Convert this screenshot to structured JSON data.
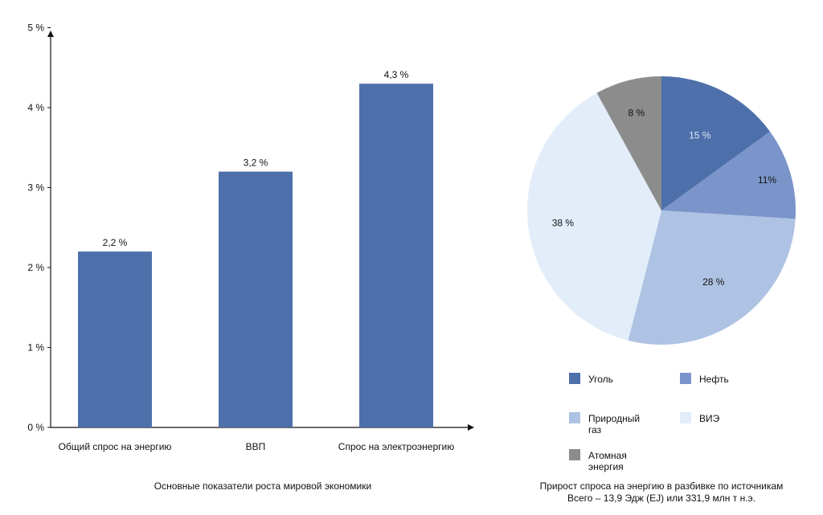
{
  "chart_data": [
    {
      "type": "bar",
      "caption": "Основные показатели роста мировой экономики",
      "categories": [
        "Общий спрос на энергию",
        "ВВП",
        "Спрос на электроэнергию"
      ],
      "values": [
        2.2,
        3.2,
        4.3
      ],
      "value_labels": [
        "2,2 %",
        "3,2 %",
        "4,3 %"
      ],
      "y_ticks": [
        {
          "value": 0,
          "label": "0 %"
        },
        {
          "value": 1,
          "label": "1 %"
        },
        {
          "value": 2,
          "label": "2 %"
        },
        {
          "value": 3,
          "label": "3 %"
        },
        {
          "value": 4,
          "label": "4 %"
        },
        {
          "value": 5,
          "label": "5 %"
        }
      ],
      "ylim": [
        0,
        5
      ],
      "grid": false,
      "color": "#4e70aa"
    },
    {
      "type": "pie",
      "caption": "Прирост спроса на энергию в разбивке по источникам",
      "subcaption": "Всего – 13,9 Эдж (EJ) или 331,9 млн т н.э.",
      "slices": [
        {
          "name": "Уголь",
          "value": 15,
          "label": "15 %",
          "color": "#4e70aa",
          "text_color": "#dbe5f5"
        },
        {
          "name": "Нефть",
          "value": 11,
          "label": "11%",
          "color": "#7b95cb",
          "text_color": "#111111"
        },
        {
          "name": "Природный газ",
          "value": 28,
          "label": "28 %",
          "color": "#aec2e3",
          "text_color": "#111111"
        },
        {
          "name": "ВИЭ",
          "value": 38,
          "label": "38 %",
          "color": "#e2edf9",
          "text_color": "#111111"
        },
        {
          "name": "Атомная энергия",
          "value": 8,
          "label": "8 %",
          "color": "#8c8c8c",
          "text_color": "#111111"
        }
      ],
      "legend": {
        "placement": "bottom",
        "items": [
          {
            "lines": [
              "Уголь"
            ],
            "color": "#4e70aa"
          },
          {
            "lines": [
              "Нефть"
            ],
            "color": "#7b95cb"
          },
          {
            "lines": [
              "Природный",
              "газ"
            ],
            "color": "#aec2e3"
          },
          {
            "lines": [
              "ВИЭ"
            ],
            "color": "#e2edf9"
          },
          {
            "lines": [
              "Атомная",
              "энергия"
            ],
            "color": "#8c8c8c"
          }
        ]
      }
    }
  ]
}
